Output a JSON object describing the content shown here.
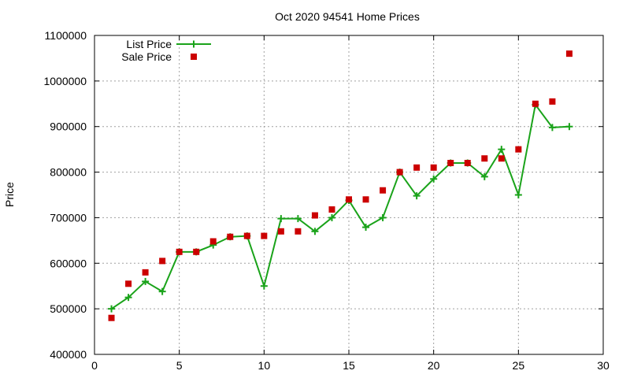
{
  "chart_data": {
    "type": "line",
    "title": "Oct 2020 94541 Home Prices",
    "xlabel": "",
    "ylabel": "Price",
    "xlim": [
      0,
      30
    ],
    "ylim": [
      400000,
      1100000
    ],
    "x_ticks": [
      0,
      5,
      10,
      15,
      20,
      25,
      30
    ],
    "y_ticks": [
      400000,
      500000,
      600000,
      700000,
      800000,
      900000,
      1000000,
      1100000
    ],
    "grid": true,
    "legend_position": "top-left",
    "series": [
      {
        "name": "List Price",
        "style": "line-with-plus-markers",
        "color": "#1aa31a",
        "x": [
          1,
          2,
          3,
          4,
          5,
          6,
          7,
          8,
          9,
          10,
          11,
          12,
          13,
          14,
          15,
          16,
          17,
          18,
          19,
          20,
          21,
          22,
          23,
          24,
          25,
          26,
          27,
          28
        ],
        "y": [
          500000,
          525000,
          560000,
          538000,
          625000,
          625000,
          640000,
          658000,
          660000,
          550000,
          698000,
          698000,
          670000,
          700000,
          738000,
          679000,
          700000,
          800000,
          748000,
          785000,
          820000,
          820000,
          790000,
          850000,
          750000,
          948000,
          898000,
          900000
        ]
      },
      {
        "name": "Sale Price",
        "style": "square-markers",
        "color": "#cc0000",
        "x": [
          1,
          2,
          3,
          4,
          5,
          6,
          7,
          8,
          9,
          10,
          11,
          12,
          13,
          14,
          15,
          16,
          17,
          18,
          19,
          20,
          21,
          22,
          23,
          24,
          25,
          26,
          27,
          28
        ],
        "y": [
          480000,
          555000,
          580000,
          605000,
          625000,
          625000,
          648000,
          658000,
          660000,
          660000,
          670000,
          670000,
          705000,
          718000,
          740000,
          740000,
          760000,
          800000,
          810000,
          810000,
          820000,
          820000,
          830000,
          830000,
          850000,
          950000,
          955000,
          1060000
        ]
      }
    ]
  }
}
